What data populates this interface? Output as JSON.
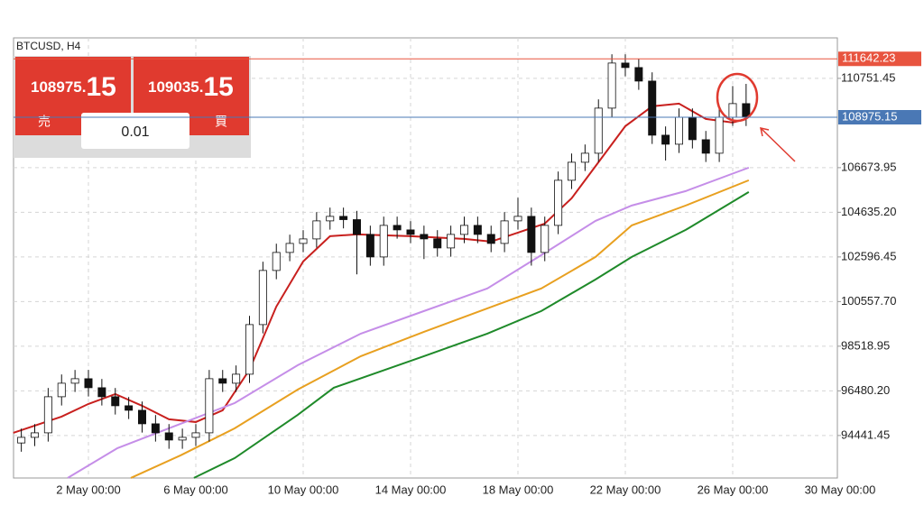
{
  "chart_data": {
    "type": "candlestick",
    "title": "BTCUSD, H4",
    "panel": {
      "bid_main": "108975.",
      "bid_fraction": "15",
      "ask_main": "109035.",
      "ask_fraction": "15",
      "sell": "売",
      "buy": "買",
      "volume": "0.01"
    },
    "xlim": [
      -0.79,
      29.9
    ],
    "ylim": [
      92500,
      112600
    ],
    "xticks": [
      {
        "value": 2,
        "label": "2 May 00:00"
      },
      {
        "value": 6,
        "label": "6 May 00:00"
      },
      {
        "value": 10,
        "label": "10 May 00:00"
      },
      {
        "value": 14,
        "label": "14 May 00:00"
      },
      {
        "value": 18,
        "label": "18 May 00:00"
      },
      {
        "value": 22,
        "label": "22 May 00:00"
      },
      {
        "value": 26,
        "label": "26 May 00:00"
      },
      {
        "value": 30,
        "label": "30 May 00:00"
      }
    ],
    "yticks": [
      94441.45,
      {
        "value": 96480.2,
        "label": "96480.20"
      },
      98518.95,
      {
        "value": 100557.7,
        "label": "100557.70"
      },
      102596.45,
      {
        "value": 104635.2,
        "label": "104635.20"
      },
      106673.95,
      110751.45
    ],
    "grid": true,
    "price_lines": [
      {
        "value": 111642.23,
        "color": "#e8543f"
      },
      {
        "value": 108975.15,
        "color": "#4a78b5"
      }
    ],
    "x": [
      -0.5,
      0,
      0.5,
      1,
      1.5,
      2,
      2.5,
      3,
      3.5,
      4,
      4.5,
      5,
      5.5,
      6,
      6.5,
      7,
      7.5,
      8,
      8.5,
      9,
      9.5,
      10,
      10.5,
      11,
      11.5,
      12,
      12.5,
      13,
      13.5,
      14,
      14.5,
      15,
      15.5,
      16,
      16.5,
      17,
      17.5,
      18,
      18.5,
      19,
      19.5,
      20,
      20.5,
      21,
      21.5,
      22,
      22.5,
      23,
      23.5,
      24,
      24.5,
      25,
      25.5,
      26,
      26.5
    ],
    "open": [
      94100,
      94357,
      94563,
      96211,
      96829,
      97035,
      96623,
      96211,
      95799,
      95593,
      94975,
      94563,
      94234,
      94357,
      94563,
      97035,
      96829,
      97241,
      99506,
      101978,
      102801,
      103213,
      103419,
      104243,
      104449,
      104300,
      103625,
      102595,
      104037,
      103831,
      103625,
      103419,
      103007,
      103625,
      104037,
      103625,
      103213,
      104243,
      104449,
      102801,
      104037,
      106097,
      106920,
      107332,
      109392,
      111451,
      111245,
      110627,
      108156,
      107744,
      108980,
      107950,
      107332,
      108980,
      109598
    ],
    "high": [
      94757,
      94963,
      96611,
      97229,
      97435,
      97435,
      97023,
      96611,
      96199,
      95993,
      95375,
      94963,
      94757,
      94963,
      97435,
      97435,
      97641,
      99906,
      102378,
      103201,
      103613,
      103819,
      104643,
      104849,
      104849,
      104700,
      104025,
      104437,
      104437,
      104231,
      104025,
      103819,
      104025,
      104437,
      104437,
      104025,
      104643,
      105300,
      104849,
      104437,
      106497,
      107320,
      107732,
      109792,
      111851,
      111851,
      111645,
      111027,
      108556,
      109380,
      109380,
      108350,
      109380,
      110400,
      110500
    ],
    "low": [
      93700,
      93957,
      94163,
      95811,
      96429,
      96223,
      95811,
      95399,
      95193,
      94575,
      94163,
      93834,
      93834,
      93957,
      94163,
      96429,
      96429,
      96841,
      99106,
      101578,
      102401,
      102813,
      103019,
      103843,
      103900,
      101800,
      102195,
      102195,
      103431,
      103225,
      102500,
      102607,
      102607,
      103225,
      103225,
      102813,
      102813,
      103843,
      102200,
      102401,
      103637,
      105697,
      106520,
      106932,
      108992,
      110845,
      110227,
      107756,
      107000,
      107344,
      107550,
      106932,
      106932,
      108580,
      108575
    ],
    "close": [
      94357,
      94563,
      96211,
      96829,
      97035,
      96623,
      96211,
      95799,
      95593,
      94975,
      94563,
      94234,
      94357,
      94563,
      97035,
      96829,
      97241,
      99506,
      101978,
      102801,
      103213,
      103419,
      104243,
      104449,
      104300,
      103625,
      102595,
      104037,
      103831,
      103625,
      103419,
      103007,
      103625,
      104037,
      103625,
      103213,
      104243,
      104449,
      102801,
      104037,
      106097,
      106920,
      107332,
      109392,
      111451,
      111245,
      110627,
      108156,
      107744,
      108980,
      107950,
      107332,
      108980,
      109598,
      108975
    ],
    "up_color": "#ffffff",
    "down_color": "#111111",
    "lines": [
      {
        "color": "#c8201e",
        "x": [
          -0.8,
          1,
          2,
          3,
          4,
          5,
          6,
          7,
          8,
          9,
          10,
          11,
          12,
          14,
          16,
          17,
          18,
          19,
          20,
          21,
          22,
          23,
          24,
          25,
          26,
          26.5
        ],
        "values": [
          94563,
          95305,
          95882,
          96335,
          95799,
          95181,
          95057,
          95593,
          97447,
          100330,
          102390,
          103543,
          103625,
          103543,
          103419,
          103296,
          103707,
          104119,
          105273,
          106920,
          108568,
          109474,
          109598,
          108898,
          108733,
          108898
        ]
      },
      {
        "color": "#c58ee8",
        "x": [
          1.23,
          3.08,
          5.43,
          7.45,
          9.8,
          12.15,
          14.5,
          16.86,
          18.87,
          20.89,
          22.24,
          24.25,
          26.6
        ],
        "values": [
          92504,
          93863,
          94975,
          95923,
          97653,
          99095,
          100125,
          101155,
          102678,
          104243,
          104944,
          105603,
          106674
        ]
      },
      {
        "color": "#e8a020",
        "x": [
          3.58,
          5.43,
          7.45,
          9.8,
          12.15,
          14.5,
          16.86,
          18.87,
          20.89,
          22.24,
          24.25,
          26.6
        ],
        "values": [
          92504,
          93533,
          94769,
          96541,
          98065,
          99177,
          100248,
          101155,
          102595,
          104037,
          104944,
          106097
        ]
      },
      {
        "color": "#1f8a2a",
        "x": [
          5.93,
          7.45,
          9.8,
          11.14,
          14.5,
          16.86,
          18.87,
          20.89,
          22.24,
          24.25,
          26.6
        ],
        "values": [
          92504,
          93410,
          95387,
          96623,
          98065,
          99095,
          100125,
          101566,
          102595,
          103831,
          105561
        ]
      }
    ]
  }
}
